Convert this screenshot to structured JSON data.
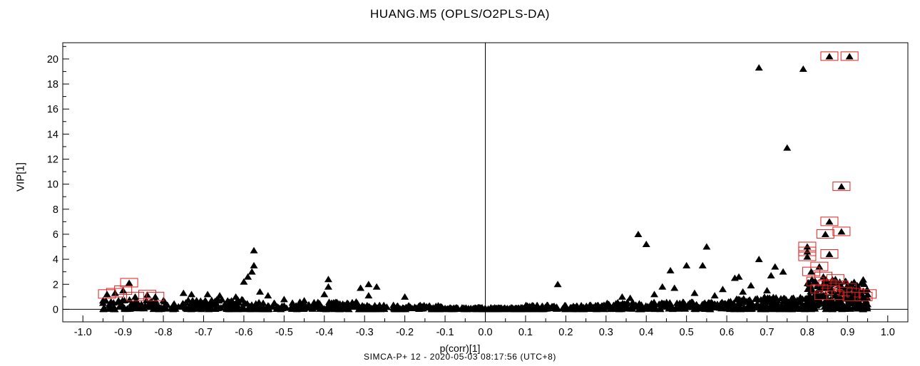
{
  "chart_data": {
    "type": "scatter",
    "title": "HUANG.M5 (OPLS/O2PLS-DA)",
    "xlabel": "p(corr)[1]",
    "ylabel": "VIP[1]",
    "footer": "SIMCA-P+ 12 - 2020-05-03 08:17:56 (UTC+8)",
    "xlim": [
      -1.05,
      1.05
    ],
    "ylim": [
      -1,
      21.3
    ],
    "x_ticks": [
      -1.0,
      -0.9,
      -0.8,
      -0.7,
      -0.6,
      -0.5,
      -0.4,
      -0.3,
      -0.2,
      -0.1,
      0.0,
      0.1,
      0.2,
      0.3,
      0.4,
      0.5,
      0.6,
      0.7,
      0.8,
      0.9,
      1.0
    ],
    "x_tick_labels": [
      "-1.0",
      "-0.9",
      "-0.8",
      "-0.7",
      "-0.6",
      "-0.5",
      "-0.4",
      "-0.3",
      "-0.2",
      "-0.1",
      "0.0",
      "0.1",
      "0.2",
      "0.3",
      "0.4",
      "0.5",
      "0.6",
      "0.7",
      "0.8",
      "0.9",
      "1.0"
    ],
    "y_ticks": [
      0,
      2,
      4,
      6,
      8,
      10,
      12,
      14,
      16,
      18,
      20
    ],
    "y_tick_labels": [
      "0",
      "2",
      "4",
      "6",
      "8",
      "10",
      "12",
      "14",
      "16",
      "18",
      "20"
    ],
    "reference_lines": {
      "x": 0,
      "y": 0
    },
    "grid": false,
    "marker": "triangle",
    "marker_color": "#000000",
    "highlight_color": "#e02020",
    "highlighted_points": [
      {
        "x": 0.855,
        "y": 20.2
      },
      {
        "x": 0.905,
        "y": 20.2
      },
      {
        "x": 0.885,
        "y": 9.8
      },
      {
        "x": 0.855,
        "y": 7.0
      },
      {
        "x": 0.885,
        "y": 6.2
      },
      {
        "x": 0.845,
        "y": 6.0
      },
      {
        "x": 0.855,
        "y": 4.4
      },
      {
        "x": 0.8,
        "y": 5.0
      },
      {
        "x": 0.8,
        "y": 4.6
      },
      {
        "x": 0.8,
        "y": 4.2
      },
      {
        "x": 0.83,
        "y": 3.4
      },
      {
        "x": 0.81,
        "y": 3.0
      },
      {
        "x": 0.84,
        "y": 2.6
      },
      {
        "x": 0.87,
        "y": 2.4
      },
      {
        "x": 0.82,
        "y": 2.2
      },
      {
        "x": 0.85,
        "y": 2.0
      },
      {
        "x": 0.88,
        "y": 1.9
      },
      {
        "x": 0.9,
        "y": 1.7
      },
      {
        "x": 0.83,
        "y": 1.6
      },
      {
        "x": 0.86,
        "y": 1.5
      },
      {
        "x": 0.89,
        "y": 1.4
      },
      {
        "x": 0.92,
        "y": 1.3
      },
      {
        "x": 0.95,
        "y": 1.2
      },
      {
        "x": 0.84,
        "y": 1.1
      },
      {
        "x": 0.87,
        "y": 1.1
      },
      {
        "x": 0.91,
        "y": 1.0
      },
      {
        "x": 0.94,
        "y": 1.0
      },
      {
        "x": -0.885,
        "y": 2.1
      },
      {
        "x": -0.9,
        "y": 1.5
      },
      {
        "x": -0.92,
        "y": 1.3
      },
      {
        "x": -0.94,
        "y": 1.2
      },
      {
        "x": -0.84,
        "y": 1.15
      },
      {
        "x": -0.87,
        "y": 1.0
      },
      {
        "x": -0.82,
        "y": 1.0
      }
    ],
    "points": [
      {
        "x": 0.68,
        "y": 19.3
      },
      {
        "x": 0.79,
        "y": 19.2
      },
      {
        "x": 0.75,
        "y": 12.9
      },
      {
        "x": 0.38,
        "y": 6.0
      },
      {
        "x": 0.4,
        "y": 5.2
      },
      {
        "x": 0.55,
        "y": 5.0
      },
      {
        "x": 0.68,
        "y": 4.0
      },
      {
        "x": 0.5,
        "y": 3.5
      },
      {
        "x": 0.54,
        "y": 3.5
      },
      {
        "x": 0.46,
        "y": 3.1
      },
      {
        "x": 0.72,
        "y": 3.4
      },
      {
        "x": 0.74,
        "y": 3.0
      },
      {
        "x": 0.62,
        "y": 2.5
      },
      {
        "x": 0.63,
        "y": 2.6
      },
      {
        "x": 0.71,
        "y": 2.7
      },
      {
        "x": 0.18,
        "y": 2.0
      },
      {
        "x": 0.44,
        "y": 1.8
      },
      {
        "x": 0.47,
        "y": 1.7
      },
      {
        "x": 0.59,
        "y": 1.6
      },
      {
        "x": 0.66,
        "y": 1.9
      },
      {
        "x": 0.7,
        "y": 1.5
      },
      {
        "x": 0.34,
        "y": 1.0
      },
      {
        "x": 0.36,
        "y": 0.9
      },
      {
        "x": 0.42,
        "y": 1.2
      },
      {
        "x": 0.52,
        "y": 1.3
      },
      {
        "x": 0.57,
        "y": 1.1
      },
      {
        "x": 0.64,
        "y": 1.4
      },
      {
        "x": -0.575,
        "y": 4.7
      },
      {
        "x": -0.575,
        "y": 3.5
      },
      {
        "x": -0.58,
        "y": 3.0
      },
      {
        "x": -0.59,
        "y": 2.6
      },
      {
        "x": -0.6,
        "y": 2.2
      },
      {
        "x": -0.56,
        "y": 1.4
      },
      {
        "x": -0.39,
        "y": 2.4
      },
      {
        "x": -0.39,
        "y": 1.8
      },
      {
        "x": -0.4,
        "y": 1.2
      },
      {
        "x": -0.29,
        "y": 2.0
      },
      {
        "x": -0.27,
        "y": 1.8
      },
      {
        "x": -0.31,
        "y": 1.7
      },
      {
        "x": -0.29,
        "y": 1.1
      },
      {
        "x": -0.2,
        "y": 1.0
      },
      {
        "x": -0.75,
        "y": 1.3
      },
      {
        "x": -0.73,
        "y": 1.2
      },
      {
        "x": -0.69,
        "y": 1.2
      },
      {
        "x": -0.66,
        "y": 1.1
      },
      {
        "x": -0.62,
        "y": 1.0
      },
      {
        "x": -0.54,
        "y": 1.1
      },
      {
        "x": -0.5,
        "y": 0.8
      },
      {
        "x": -0.45,
        "y": 0.7
      },
      {
        "x": -0.93,
        "y": 0.6
      },
      {
        "x": -0.95,
        "y": 0.5
      },
      {
        "x": -0.8,
        "y": 0.7
      }
    ],
    "dense_band": [
      {
        "x_from": -0.95,
        "x_to": -0.6,
        "y_max": 0.8,
        "count": 180
      },
      {
        "x_from": -0.6,
        "x_to": -0.3,
        "y_max": 0.6,
        "count": 160
      },
      {
        "x_from": -0.3,
        "x_to": -0.1,
        "y_max": 0.35,
        "count": 120
      },
      {
        "x_from": -0.1,
        "x_to": 0.1,
        "y_max": 0.15,
        "count": 140
      },
      {
        "x_from": 0.1,
        "x_to": 0.3,
        "y_max": 0.35,
        "count": 120
      },
      {
        "x_from": 0.3,
        "x_to": 0.6,
        "y_max": 0.6,
        "count": 180
      },
      {
        "x_from": 0.6,
        "x_to": 0.8,
        "y_max": 1.0,
        "count": 200
      },
      {
        "x_from": 0.8,
        "x_to": 0.95,
        "y_max": 2.4,
        "count": 220
      }
    ]
  }
}
